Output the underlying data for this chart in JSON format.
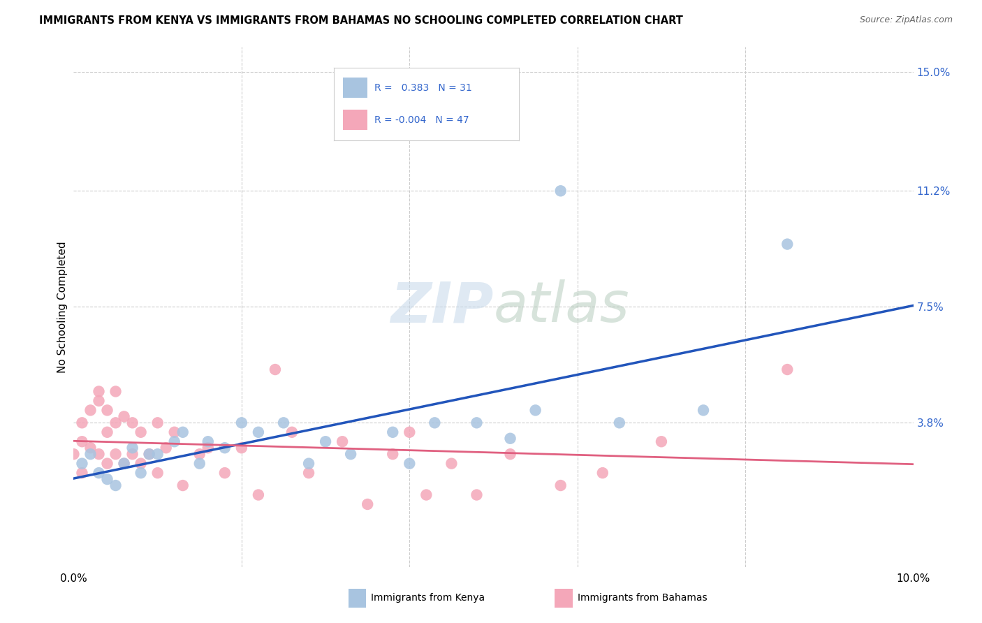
{
  "title": "IMMIGRANTS FROM KENYA VS IMMIGRANTS FROM BAHAMAS NO SCHOOLING COMPLETED CORRELATION CHART",
  "source": "Source: ZipAtlas.com",
  "ylabel": "No Schooling Completed",
  "xlim": [
    0.0,
    0.1
  ],
  "ylim": [
    -0.008,
    0.158
  ],
  "ytick_labels_right": [
    "15.0%",
    "11.2%",
    "7.5%",
    "3.8%"
  ],
  "ytick_vals_right": [
    0.15,
    0.112,
    0.075,
    0.038
  ],
  "kenya_R": "0.383",
  "kenya_N": "31",
  "bahamas_R": "-0.004",
  "bahamas_N": "47",
  "kenya_color": "#a8c4e0",
  "bahamas_color": "#f4a7b9",
  "kenya_line_color": "#2255bb",
  "bahamas_line_color": "#e06080",
  "background_color": "#ffffff",
  "grid_color": "#cccccc",
  "kenya_x": [
    0.001,
    0.002,
    0.003,
    0.004,
    0.005,
    0.006,
    0.007,
    0.008,
    0.009,
    0.01,
    0.012,
    0.013,
    0.015,
    0.016,
    0.018,
    0.02,
    0.022,
    0.025,
    0.028,
    0.03,
    0.033,
    0.038,
    0.04,
    0.043,
    0.048,
    0.052,
    0.055,
    0.058,
    0.065,
    0.075,
    0.085
  ],
  "kenya_y": [
    0.025,
    0.028,
    0.022,
    0.02,
    0.018,
    0.025,
    0.03,
    0.022,
    0.028,
    0.028,
    0.032,
    0.035,
    0.025,
    0.032,
    0.03,
    0.038,
    0.035,
    0.038,
    0.025,
    0.032,
    0.028,
    0.035,
    0.025,
    0.038,
    0.038,
    0.033,
    0.042,
    0.112,
    0.038,
    0.042,
    0.095
  ],
  "bahamas_x": [
    0.0,
    0.001,
    0.001,
    0.001,
    0.002,
    0.002,
    0.003,
    0.003,
    0.003,
    0.004,
    0.004,
    0.004,
    0.005,
    0.005,
    0.005,
    0.006,
    0.006,
    0.007,
    0.007,
    0.008,
    0.008,
    0.009,
    0.01,
    0.01,
    0.011,
    0.012,
    0.013,
    0.015,
    0.016,
    0.018,
    0.02,
    0.022,
    0.024,
    0.026,
    0.028,
    0.032,
    0.035,
    0.038,
    0.04,
    0.042,
    0.045,
    0.048,
    0.052,
    0.058,
    0.063,
    0.07,
    0.085
  ],
  "bahamas_y": [
    0.028,
    0.022,
    0.038,
    0.032,
    0.042,
    0.03,
    0.048,
    0.045,
    0.028,
    0.042,
    0.035,
    0.025,
    0.048,
    0.038,
    0.028,
    0.04,
    0.025,
    0.038,
    0.028,
    0.035,
    0.025,
    0.028,
    0.038,
    0.022,
    0.03,
    0.035,
    0.018,
    0.028,
    0.03,
    0.022,
    0.03,
    0.015,
    0.055,
    0.035,
    0.022,
    0.032,
    0.012,
    0.028,
    0.035,
    0.015,
    0.025,
    0.015,
    0.028,
    0.018,
    0.022,
    0.032,
    0.055
  ]
}
